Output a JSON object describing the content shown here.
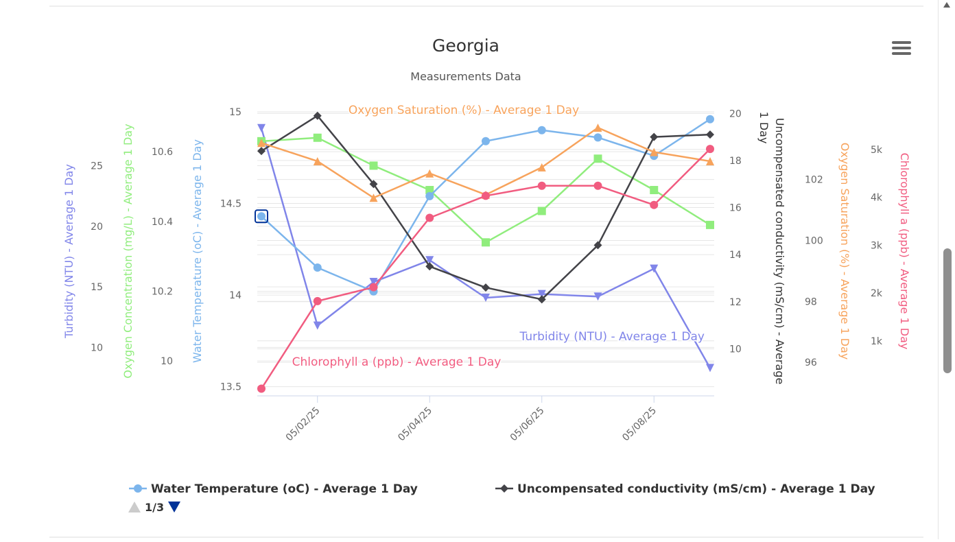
{
  "chart_data": {
    "type": "line",
    "title": "Georgia",
    "subtitle": "Measurements Data",
    "x": [
      "05/01/25",
      "05/02/25",
      "05/03/25",
      "05/04/25",
      "05/05/25",
      "05/06/25",
      "05/07/25",
      "05/08/25",
      "05/09/25"
    ],
    "x_tick_labels": [
      "05/02/25",
      "05/04/25",
      "05/06/25",
      "05/08/25"
    ],
    "series": [
      {
        "key": "turbidity",
        "name": "Turbidity (NTU) - Average 1 Day",
        "axis_title": "Turbidity (NTU) - Average 1 Day",
        "color": "#8085e9",
        "marker": "triangle-down",
        "values": [
          28.1,
          11.8,
          15.4,
          17.2,
          14.1,
          14.4,
          14.2,
          16.5,
          8.3
        ]
      },
      {
        "key": "oxygen_conc",
        "name": "Oxygen Concentration (mg/L) - Average 1 Day",
        "axis_title": "Oxygen Concentration (mg/L) - Average 1 Day",
        "color": "#90ed7d",
        "marker": "square",
        "values": [
          10.63,
          10.64,
          10.56,
          10.49,
          10.34,
          10.43,
          10.58,
          10.49,
          10.39
        ]
      },
      {
        "key": "water_temp",
        "name": "Water Temperature (oC) - Average 1 Day",
        "axis_title": "Water Temperature (oC) - Average 1 Day",
        "color": "#7cb5ec",
        "marker": "circle",
        "values": [
          14.43,
          14.15,
          14.02,
          14.54,
          14.84,
          14.9,
          14.86,
          14.76,
          14.96
        ]
      },
      {
        "key": "conductivity",
        "name": "Uncompensated conductivity (mS/cm) - Average 1 Day",
        "axis_title": "Uncompensated conductivity (mS/cm) - Average 1 Day",
        "color": "#434348",
        "marker": "diamond",
        "values": [
          18.4,
          19.9,
          17.0,
          13.5,
          12.6,
          12.1,
          14.4,
          19.0,
          19.1
        ]
      },
      {
        "key": "oxygen_sat",
        "name": "Oxygen Saturation (%) - Average 1 Day",
        "axis_title": "Oxygen Saturation (%) - Average 1 Day",
        "color": "#f7a35c",
        "marker": "triangle",
        "values": [
          103.2,
          102.6,
          101.4,
          102.2,
          101.5,
          102.4,
          103.7,
          102.9,
          102.6
        ]
      },
      {
        "key": "chlorophyll",
        "name": "Chlorophyll a (ppb) - Average 1 Day",
        "axis_title": "Chlorophyll a (ppb) - Average 1 Day",
        "color": "#f15c80",
        "marker": "circle",
        "values": [
          0,
          1830,
          2120,
          3570,
          4030,
          4240,
          4240,
          3840,
          5010
        ]
      }
    ],
    "y_axes": [
      {
        "key": "turbidity",
        "ticks": [
          "10",
          "15",
          "20",
          "25"
        ],
        "range": [
          6,
          29.9
        ]
      },
      {
        "key": "oxygen_conc",
        "ticks": [
          "10",
          "10.2",
          "10.4",
          "10.6"
        ],
        "range": [
          9.9,
          10.73
        ]
      },
      {
        "key": "water_temp",
        "ticks": [
          "13.5",
          "14",
          "14.5",
          "15"
        ],
        "range": [
          13.45,
          15.03
        ]
      },
      {
        "key": "conductivity",
        "ticks": [
          "10",
          "12",
          "14",
          "16",
          "18",
          "20"
        ],
        "range": [
          8,
          20.3
        ]
      },
      {
        "key": "oxygen_sat",
        "ticks": [
          "96",
          "98",
          "100",
          "102"
        ],
        "range": [
          94.9,
          104.4
        ]
      },
      {
        "key": "chlorophyll",
        "ticks": [
          "1k",
          "2k",
          "3k",
          "4k",
          "5k"
        ],
        "range": [
          -150,
          5900
        ]
      }
    ],
    "series_labels": [
      {
        "key": "oxygen_sat",
        "text": "Oxygen Saturation (%) - Average 1 Day"
      },
      {
        "key": "turbidity",
        "text": "Turbidity (NTU) - Average 1 Day"
      },
      {
        "key": "chlorophyll",
        "text": "Chlorophyll a (ppb) - Average 1 Day"
      }
    ],
    "legend": {
      "placement": "bottom",
      "visible_items": [
        {
          "key": "water_temp",
          "text": "Water Temperature (oC) - Average 1 Day"
        },
        {
          "key": "conductivity",
          "text": "Uncompensated conductivity (mS/cm) - Average 1 Day"
        }
      ],
      "page": "1/3"
    },
    "grid": true
  }
}
